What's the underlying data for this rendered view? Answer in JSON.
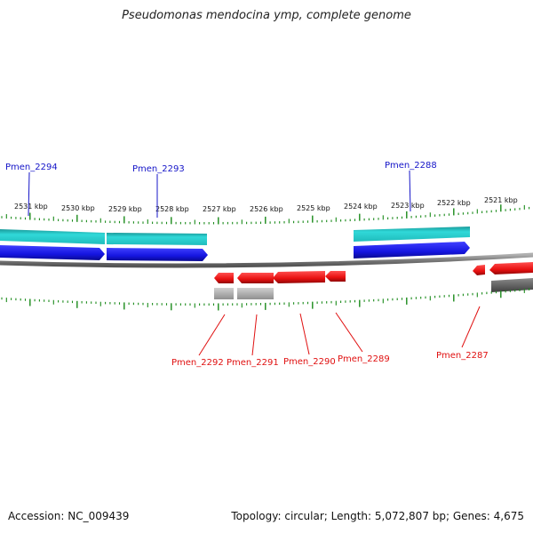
{
  "title": "Pseudomonas mendocina ymp, complete genome",
  "footer": {
    "accession": "Accession: NC_009439",
    "summary": "Topology: circular; Length: 5,072,807 bp; Genes: 4,675"
  },
  "scale_labels": [
    "2531 kbp",
    "2530 kbp",
    "2529 kbp",
    "2528 kbp",
    "2527 kbp",
    "2526 kbp",
    "2525 kbp",
    "2524 kbp",
    "2523 kbp",
    "2522 kbp",
    "2521 kbp"
  ],
  "colors": {
    "forward_gene": "#1515e0",
    "forward_feature": "#20c8c8",
    "reverse_gene": "#e81010",
    "reverse_feature": "#a8a8a8",
    "backbone": "#808080",
    "tick": "#1a8a1a"
  },
  "labels": {
    "top": [
      "Pmen_2294",
      "Pmen_2293",
      "Pmen_2288"
    ],
    "bottom": [
      "Pmen_2292",
      "Pmen_2291",
      "Pmen_2290",
      "Pmen_2289",
      "Pmen_2287"
    ]
  }
}
